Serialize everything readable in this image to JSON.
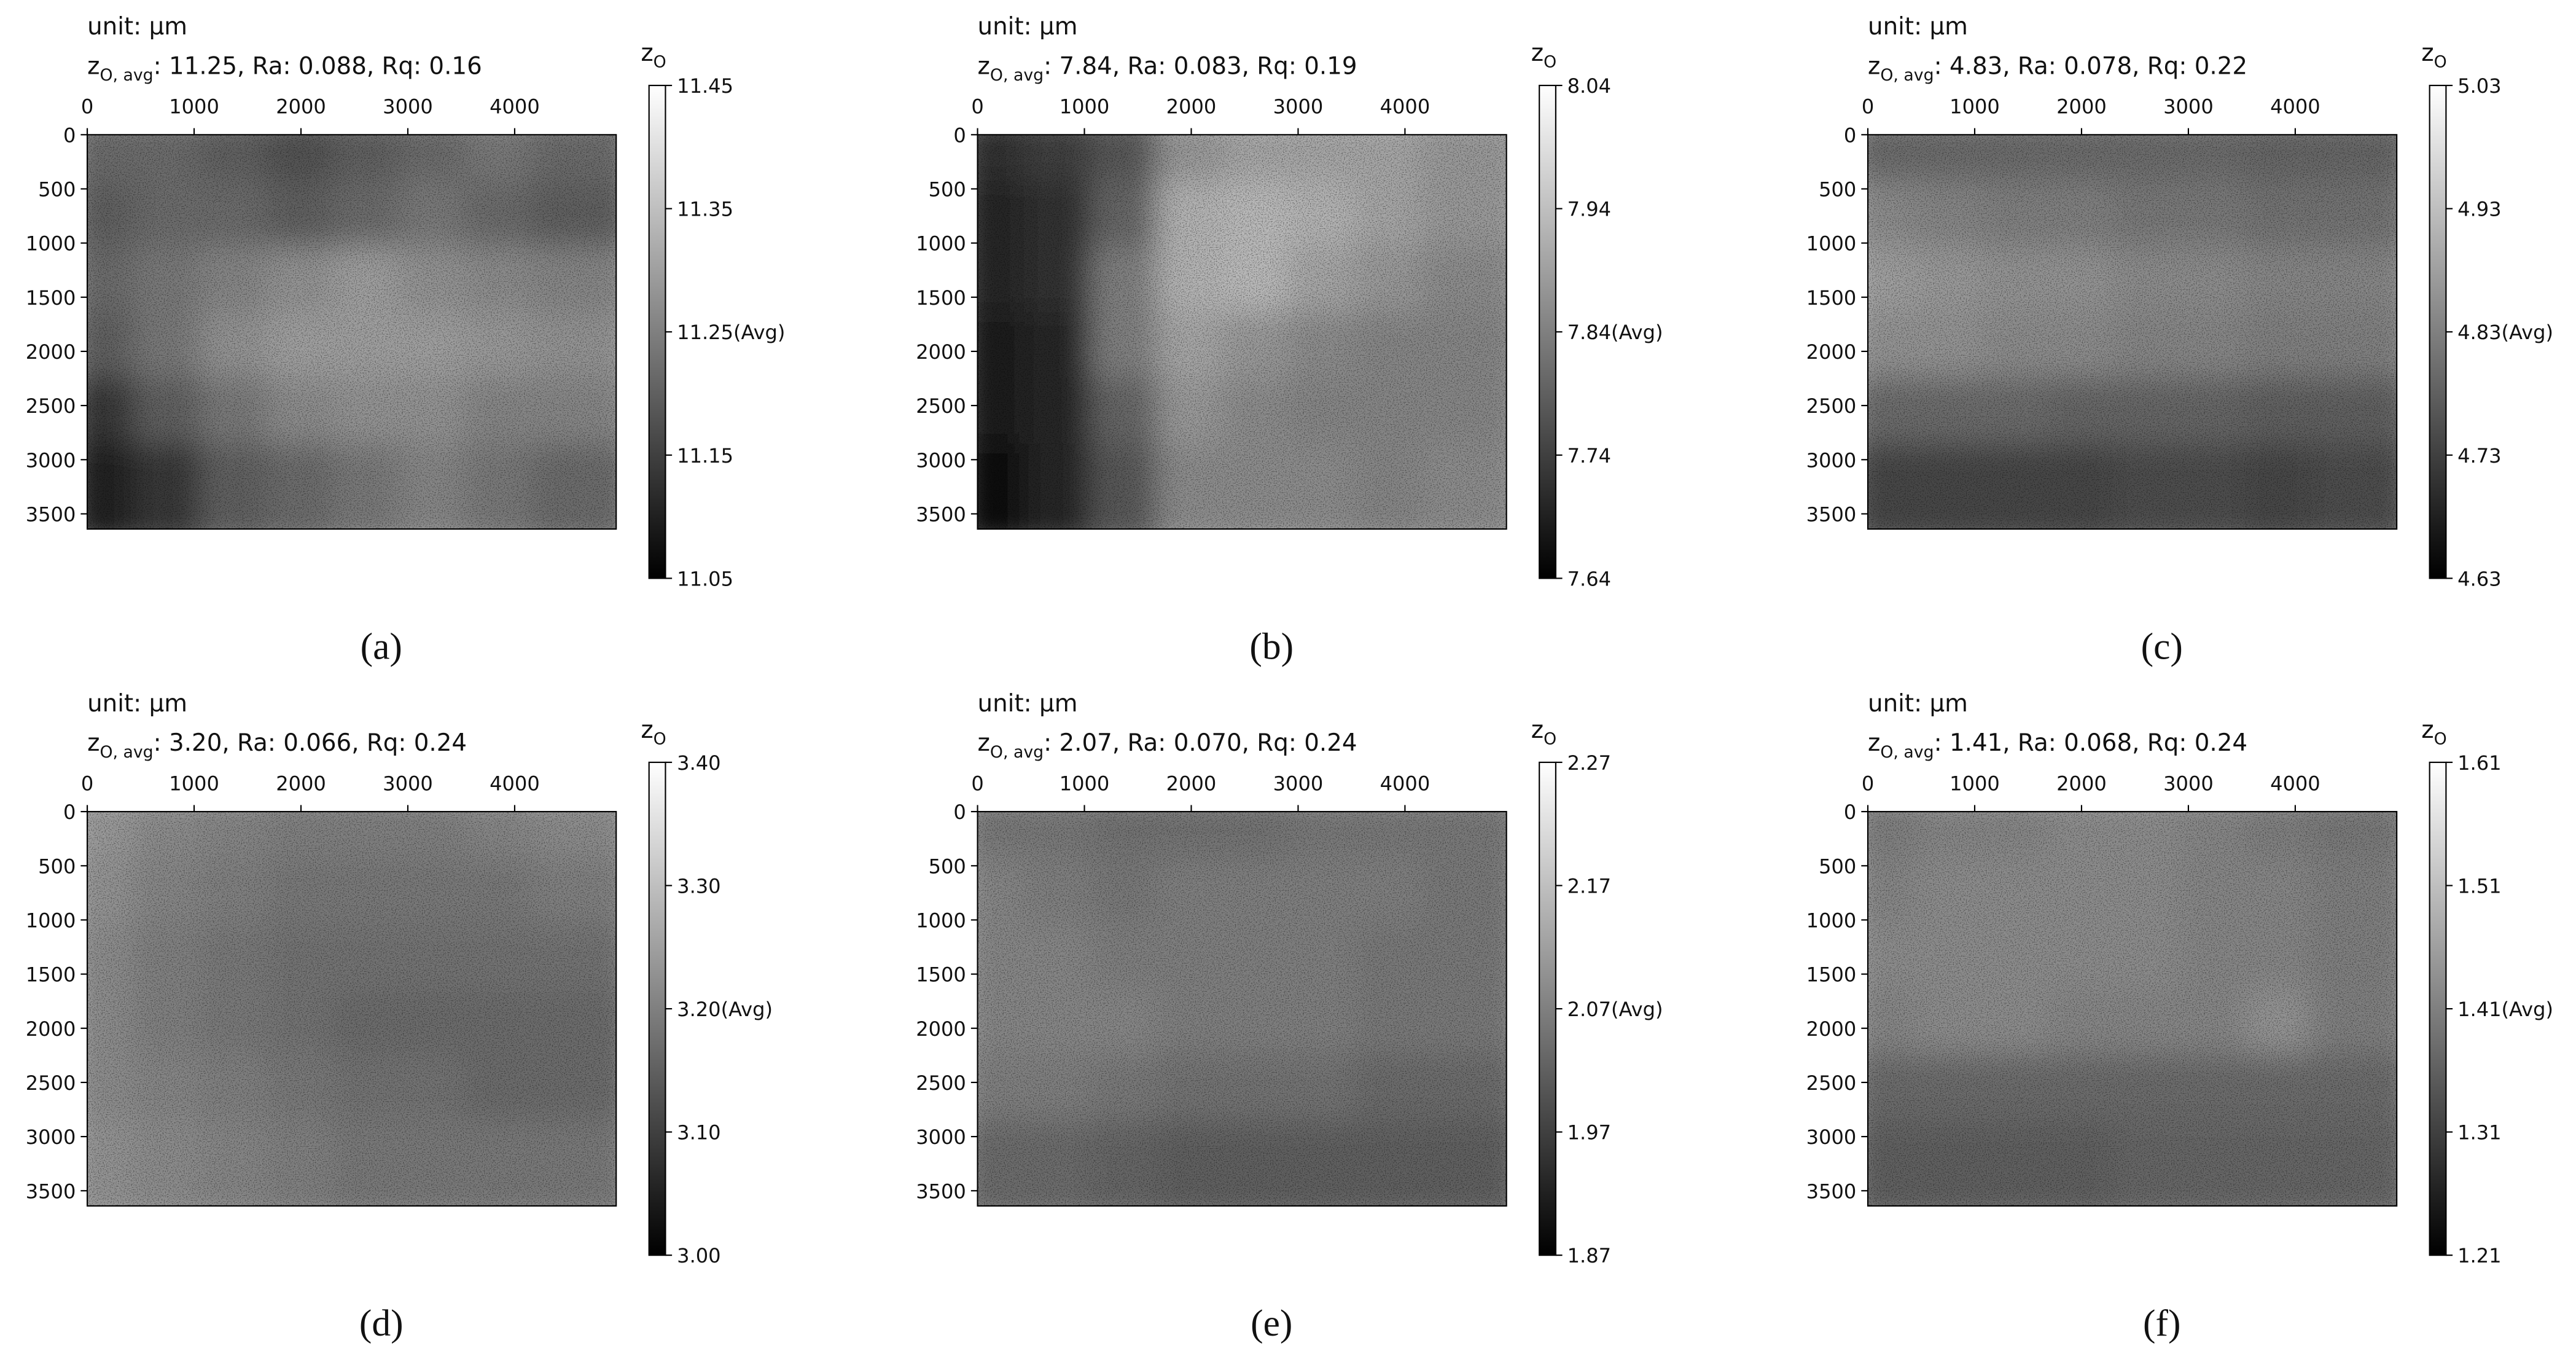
{
  "chart_data": [
    {
      "type": "heatmap",
      "unit_label": "unit: µm",
      "title": {
        "symbol": "z",
        "subscript": "O, avg",
        "text": ": 11.25, Ra: 0.088, Rq: 0.16"
      },
      "colorbar": {
        "label": {
          "symbol": "z",
          "subscript": "O"
        },
        "lim": [
          11.05,
          11.45
        ],
        "ticks": [
          11.05,
          11.15,
          {
            "value": 11.25,
            "label": "11.25(Avg)"
          },
          11.35,
          11.45
        ]
      },
      "xlim": [
        0,
        4950
      ],
      "xticks": [
        0,
        1000,
        2000,
        3000,
        4000
      ],
      "ylim": [
        3640,
        0
      ],
      "yticks": [
        0,
        500,
        1000,
        1500,
        2000,
        2500,
        3000,
        3500
      ],
      "values": [
        [
          11.22,
          11.22,
          11.2,
          11.18,
          11.2,
          11.22,
          11.24,
          11.22
        ],
        [
          11.2,
          11.22,
          11.22,
          11.2,
          11.22,
          11.24,
          11.22,
          11.2
        ],
        [
          11.22,
          11.24,
          11.26,
          11.28,
          11.3,
          11.28,
          11.27,
          11.26
        ],
        [
          11.2,
          11.24,
          11.28,
          11.3,
          11.3,
          11.3,
          11.29,
          11.28
        ],
        [
          11.14,
          11.2,
          11.24,
          11.27,
          11.28,
          11.28,
          11.26,
          11.26
        ],
        [
          11.1,
          11.14,
          11.2,
          11.22,
          11.24,
          11.26,
          11.24,
          11.22
        ]
      ],
      "panel_label": "(a)"
    },
    {
      "type": "heatmap",
      "unit_label": "unit: µm",
      "title": {
        "symbol": "z",
        "subscript": "O, avg",
        "text": ": 7.84, Ra: 0.083, Rq: 0.19"
      },
      "colorbar": {
        "label": {
          "symbol": "z",
          "subscript": "O"
        },
        "lim": [
          7.64,
          8.04
        ],
        "ticks": [
          7.64,
          7.74,
          {
            "value": 7.84,
            "label": "7.84(Avg)"
          },
          7.94,
          8.04
        ]
      },
      "xlim": [
        0,
        4950
      ],
      "xticks": [
        0,
        1000,
        2000,
        3000,
        4000
      ],
      "ylim": [
        3640,
        0
      ],
      "yticks": [
        0,
        500,
        1000,
        1500,
        2000,
        2500,
        3000,
        3500
      ],
      "values": [
        [
          7.72,
          7.74,
          7.78,
          7.88,
          7.9,
          7.9,
          7.9,
          7.88
        ],
        [
          7.7,
          7.72,
          7.8,
          7.92,
          7.93,
          7.92,
          7.9,
          7.88
        ],
        [
          7.7,
          7.72,
          7.84,
          7.92,
          7.93,
          7.9,
          7.88,
          7.86
        ],
        [
          7.68,
          7.7,
          7.84,
          7.9,
          7.88,
          7.86,
          7.85,
          7.85
        ],
        [
          7.68,
          7.7,
          7.8,
          7.88,
          7.86,
          7.85,
          7.85,
          7.85
        ],
        [
          7.66,
          7.7,
          7.78,
          7.86,
          7.86,
          7.86,
          7.85,
          7.86
        ]
      ],
      "panel_label": "(b)"
    },
    {
      "type": "heatmap",
      "unit_label": "unit: µm",
      "title": {
        "symbol": "z",
        "subscript": "O, avg",
        "text": ": 4.83, Ra: 0.078, Rq: 0.22"
      },
      "colorbar": {
        "label": {
          "symbol": "z",
          "subscript": "O"
        },
        "lim": [
          4.63,
          5.03
        ],
        "ticks": [
          4.63,
          4.73,
          {
            "value": 4.83,
            "label": "4.83(Avg)"
          },
          4.93,
          5.03
        ]
      },
      "xlim": [
        0,
        4950
      ],
      "xticks": [
        0,
        1000,
        2000,
        3000,
        4000
      ],
      "ylim": [
        3640,
        0
      ],
      "yticks": [
        0,
        500,
        1000,
        1500,
        2000,
        2500,
        3000,
        3500
      ],
      "values": [
        [
          4.8,
          4.8,
          4.8,
          4.8,
          4.8,
          4.8,
          4.79,
          4.79
        ],
        [
          4.85,
          4.84,
          4.83,
          4.83,
          4.82,
          4.82,
          4.81,
          4.81
        ],
        [
          4.88,
          4.87,
          4.86,
          4.86,
          4.85,
          4.85,
          4.84,
          4.84
        ],
        [
          4.86,
          4.86,
          4.85,
          4.85,
          4.84,
          4.84,
          4.83,
          4.83
        ],
        [
          4.8,
          4.8,
          4.8,
          4.79,
          4.79,
          4.79,
          4.78,
          4.78
        ],
        [
          4.74,
          4.74,
          4.74,
          4.74,
          4.75,
          4.75,
          4.74,
          4.75
        ]
      ],
      "panel_label": "(c)"
    },
    {
      "type": "heatmap",
      "unit_label": "unit: µm",
      "title": {
        "symbol": "z",
        "subscript": "O, avg",
        "text": ": 3.20, Ra: 0.066, Rq: 0.24"
      },
      "colorbar": {
        "label": {
          "symbol": "z",
          "subscript": "O"
        },
        "lim": [
          3.0,
          3.4
        ],
        "ticks": [
          {
            "value": 3.0,
            "label": "3.00"
          },
          {
            "value": 3.1,
            "label": "3.10"
          },
          {
            "value": 3.2,
            "label": "3.20(Avg)"
          },
          {
            "value": 3.3,
            "label": "3.30"
          },
          {
            "value": 3.4,
            "label": "3.40"
          }
        ]
      },
      "xlim": [
        0,
        4950
      ],
      "xticks": [
        0,
        1000,
        2000,
        3000,
        4000
      ],
      "ylim": [
        3640,
        0
      ],
      "yticks": [
        0,
        500,
        1000,
        1500,
        2000,
        2500,
        3000,
        3500
      ],
      "values": [
        [
          3.24,
          3.22,
          3.21,
          3.2,
          3.2,
          3.2,
          3.21,
          3.22
        ],
        [
          3.23,
          3.21,
          3.2,
          3.19,
          3.19,
          3.19,
          3.19,
          3.2
        ],
        [
          3.22,
          3.2,
          3.19,
          3.18,
          3.18,
          3.18,
          3.18,
          3.18
        ],
        [
          3.22,
          3.2,
          3.19,
          3.18,
          3.17,
          3.17,
          3.17,
          3.17
        ],
        [
          3.22,
          3.21,
          3.2,
          3.19,
          3.18,
          3.18,
          3.17,
          3.17
        ],
        [
          3.23,
          3.22,
          3.21,
          3.2,
          3.19,
          3.19,
          3.19,
          3.19
        ]
      ],
      "panel_label": "(d)"
    },
    {
      "type": "heatmap",
      "unit_label": "unit: µm",
      "title": {
        "symbol": "z",
        "subscript": "O, avg",
        "text": ": 2.07, Ra: 0.070, Rq: 0.24"
      },
      "colorbar": {
        "label": {
          "symbol": "z",
          "subscript": "O"
        },
        "lim": [
          1.87,
          2.27
        ],
        "ticks": [
          1.87,
          1.97,
          {
            "value": 2.07,
            "label": "2.07(Avg)"
          },
          2.17,
          2.27
        ]
      },
      "xlim": [
        0,
        4950
      ],
      "xticks": [
        0,
        1000,
        2000,
        3000,
        4000
      ],
      "ylim": [
        3640,
        0
      ],
      "yticks": [
        0,
        500,
        1000,
        1500,
        2000,
        2500,
        3000,
        3500
      ],
      "values": [
        [
          2.06,
          2.06,
          2.05,
          2.05,
          2.05,
          2.06,
          2.06,
          2.06
        ],
        [
          2.08,
          2.07,
          2.06,
          2.07,
          2.07,
          2.07,
          2.07,
          2.06
        ],
        [
          2.08,
          2.08,
          2.07,
          2.07,
          2.07,
          2.07,
          2.06,
          2.06
        ],
        [
          2.08,
          2.08,
          2.08,
          2.07,
          2.07,
          2.07,
          2.06,
          2.06
        ],
        [
          2.07,
          2.07,
          2.06,
          2.05,
          2.05,
          2.05,
          2.04,
          2.04
        ],
        [
          2.04,
          2.04,
          2.03,
          2.02,
          2.02,
          2.02,
          2.02,
          2.02
        ]
      ],
      "panel_label": "(e)"
    },
    {
      "type": "heatmap",
      "unit_label": "unit: µm",
      "title": {
        "symbol": "z",
        "subscript": "O, avg",
        "text": ": 1.41, Ra: 0.068, Rq: 0.24"
      },
      "colorbar": {
        "label": {
          "symbol": "z",
          "subscript": "O"
        },
        "lim": [
          1.21,
          1.61
        ],
        "ticks": [
          1.21,
          1.31,
          {
            "value": 1.41,
            "label": "1.41(Avg)"
          },
          1.51,
          1.61
        ]
      },
      "xlim": [
        0,
        4950
      ],
      "xticks": [
        0,
        1000,
        2000,
        3000,
        4000
      ],
      "ylim": [
        3640,
        0
      ],
      "yticks": [
        0,
        500,
        1000,
        1500,
        2000,
        2500,
        3000,
        3500
      ],
      "values": [
        [
          1.41,
          1.42,
          1.42,
          1.43,
          1.43,
          1.42,
          1.41,
          1.4
        ],
        [
          1.42,
          1.43,
          1.43,
          1.43,
          1.43,
          1.42,
          1.42,
          1.41
        ],
        [
          1.43,
          1.43,
          1.43,
          1.43,
          1.43,
          1.42,
          1.42,
          1.41
        ],
        [
          1.42,
          1.43,
          1.43,
          1.42,
          1.42,
          1.42,
          1.44,
          1.41
        ],
        [
          1.38,
          1.38,
          1.38,
          1.38,
          1.38,
          1.38,
          1.38,
          1.38
        ],
        [
          1.36,
          1.36,
          1.36,
          1.36,
          1.37,
          1.37,
          1.37,
          1.37
        ]
      ],
      "panel_label": "(f)"
    }
  ]
}
